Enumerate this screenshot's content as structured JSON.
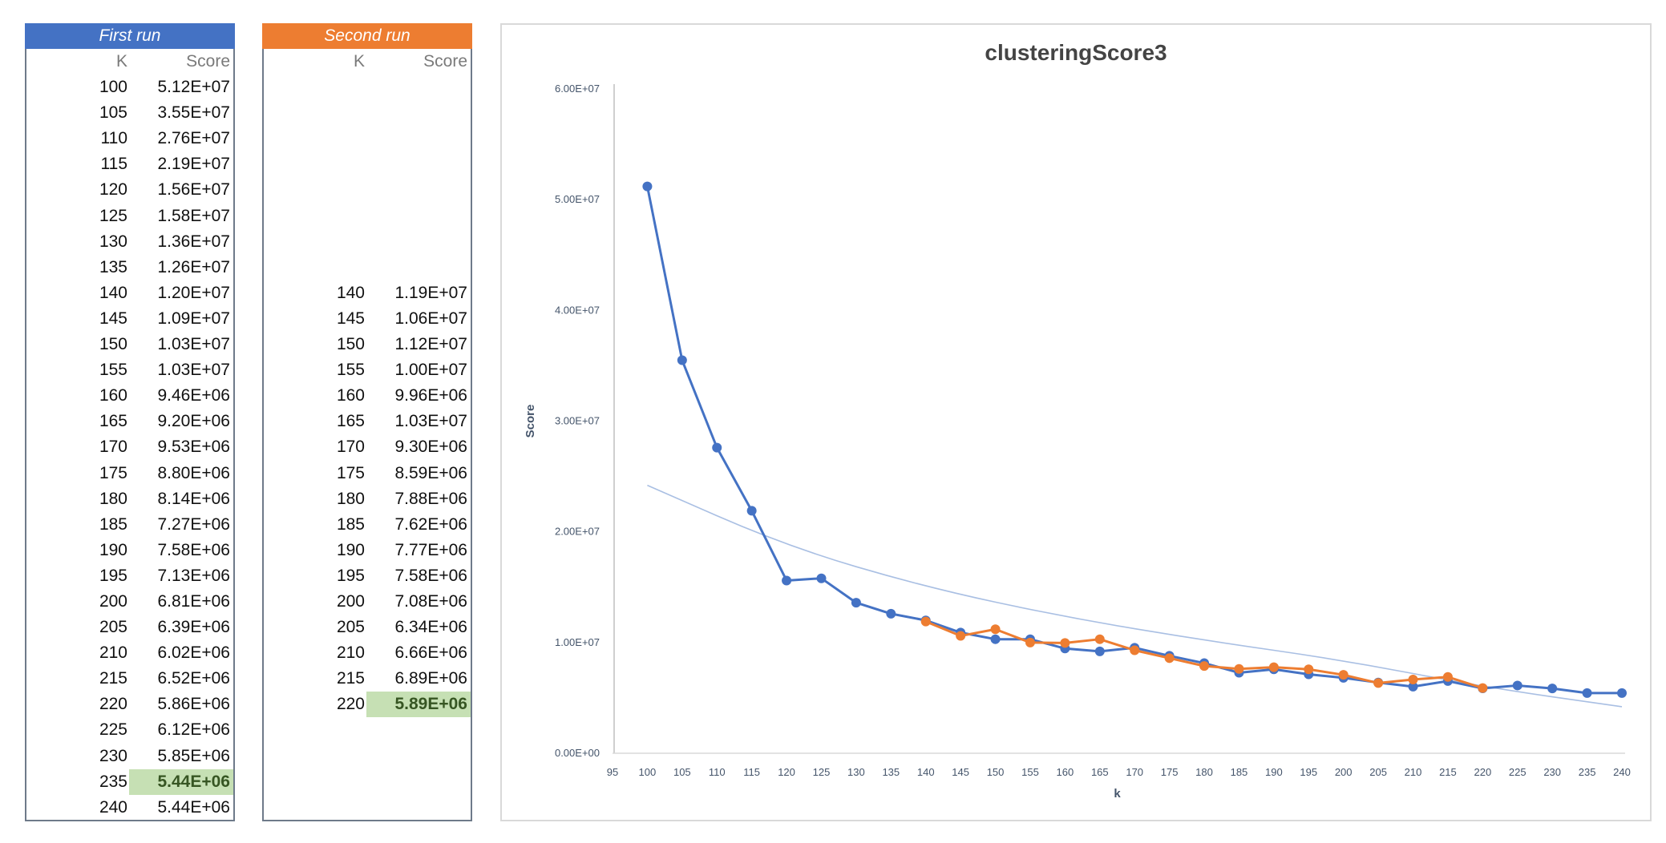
{
  "tables": {
    "first": {
      "title": "First run",
      "col_k": "K",
      "col_score": "Score",
      "rows": [
        {
          "k": "100",
          "score": "5.12E+07"
        },
        {
          "k": "105",
          "score": "3.55E+07"
        },
        {
          "k": "110",
          "score": "2.76E+07"
        },
        {
          "k": "115",
          "score": "2.19E+07"
        },
        {
          "k": "120",
          "score": "1.56E+07"
        },
        {
          "k": "125",
          "score": "1.58E+07"
        },
        {
          "k": "130",
          "score": "1.36E+07"
        },
        {
          "k": "135",
          "score": "1.26E+07"
        },
        {
          "k": "140",
          "score": "1.20E+07"
        },
        {
          "k": "145",
          "score": "1.09E+07"
        },
        {
          "k": "150",
          "score": "1.03E+07"
        },
        {
          "k": "155",
          "score": "1.03E+07"
        },
        {
          "k": "160",
          "score": "9.46E+06"
        },
        {
          "k": "165",
          "score": "9.20E+06"
        },
        {
          "k": "170",
          "score": "9.53E+06"
        },
        {
          "k": "175",
          "score": "8.80E+06"
        },
        {
          "k": "180",
          "score": "8.14E+06"
        },
        {
          "k": "185",
          "score": "7.27E+06"
        },
        {
          "k": "190",
          "score": "7.58E+06"
        },
        {
          "k": "195",
          "score": "7.13E+06"
        },
        {
          "k": "200",
          "score": "6.81E+06"
        },
        {
          "k": "205",
          "score": "6.39E+06"
        },
        {
          "k": "210",
          "score": "6.02E+06"
        },
        {
          "k": "215",
          "score": "6.52E+06"
        },
        {
          "k": "220",
          "score": "5.86E+06"
        },
        {
          "k": "225",
          "score": "6.12E+06"
        },
        {
          "k": "230",
          "score": "5.85E+06"
        },
        {
          "k": "235",
          "score": "5.44E+06",
          "highlight": true
        },
        {
          "k": "240",
          "score": "5.44E+06"
        }
      ]
    },
    "second": {
      "title": "Second run",
      "col_k": "K",
      "col_score": "Score",
      "rows": [
        {
          "k": "",
          "score": ""
        },
        {
          "k": "",
          "score": ""
        },
        {
          "k": "",
          "score": ""
        },
        {
          "k": "",
          "score": ""
        },
        {
          "k": "",
          "score": ""
        },
        {
          "k": "",
          "score": ""
        },
        {
          "k": "",
          "score": ""
        },
        {
          "k": "",
          "score": ""
        },
        {
          "k": "140",
          "score": "1.19E+07"
        },
        {
          "k": "145",
          "score": "1.06E+07"
        },
        {
          "k": "150",
          "score": "1.12E+07"
        },
        {
          "k": "155",
          "score": "1.00E+07"
        },
        {
          "k": "160",
          "score": "9.96E+06"
        },
        {
          "k": "165",
          "score": "1.03E+07"
        },
        {
          "k": "170",
          "score": "9.30E+06"
        },
        {
          "k": "175",
          "score": "8.59E+06"
        },
        {
          "k": "180",
          "score": "7.88E+06"
        },
        {
          "k": "185",
          "score": "7.62E+06"
        },
        {
          "k": "190",
          "score": "7.77E+06"
        },
        {
          "k": "195",
          "score": "7.58E+06"
        },
        {
          "k": "200",
          "score": "7.08E+06"
        },
        {
          "k": "205",
          "score": "6.34E+06"
        },
        {
          "k": "210",
          "score": "6.66E+06"
        },
        {
          "k": "215",
          "score": "6.89E+06"
        },
        {
          "k": "220",
          "score": "5.89E+06",
          "highlight": true
        },
        {
          "k": "",
          "score": ""
        },
        {
          "k": "",
          "score": ""
        },
        {
          "k": "",
          "score": ""
        },
        {
          "k": "",
          "score": ""
        }
      ]
    }
  },
  "chart_data": {
    "type": "line",
    "title": "clusteringScore3",
    "xlabel": "k",
    "ylabel": "Score",
    "x_ticks": [
      "95",
      "100",
      "105",
      "110",
      "115",
      "120",
      "125",
      "130",
      "135",
      "140",
      "145",
      "150",
      "155",
      "160",
      "165",
      "170",
      "175",
      "180",
      "185",
      "190",
      "195",
      "200",
      "205",
      "210",
      "215",
      "220",
      "225",
      "230",
      "235",
      "240"
    ],
    "y_ticks": [
      "0.00E+00",
      "1.00E+07",
      "2.00E+07",
      "3.00E+07",
      "4.00E+07",
      "5.00E+07",
      "6.00E+07"
    ],
    "xlim": [
      95,
      240
    ],
    "ylim": [
      0,
      60000000
    ],
    "grid": false,
    "series": [
      {
        "color": "#4472c4",
        "x": [
          100,
          105,
          110,
          115,
          120,
          125,
          130,
          135,
          140,
          145,
          150,
          155,
          160,
          165,
          170,
          175,
          180,
          185,
          190,
          195,
          200,
          205,
          210,
          215,
          220,
          225,
          230,
          235,
          240
        ],
        "y": [
          51200000,
          35500000,
          27600000,
          21900000,
          15600000,
          15800000,
          13600000,
          12600000,
          12000000,
          10900000,
          10300000,
          10300000,
          9460000,
          9200000,
          9530000,
          8800000,
          8140000,
          7270000,
          7580000,
          7130000,
          6810000,
          6390000,
          6020000,
          6520000,
          5860000,
          6120000,
          5850000,
          5440000,
          5440000
        ]
      },
      {
        "color": "#ed7d31",
        "x": [
          140,
          145,
          150,
          155,
          160,
          165,
          170,
          175,
          180,
          185,
          190,
          195,
          200,
          205,
          210,
          215,
          220
        ],
        "y": [
          11900000,
          10600000,
          11200000,
          10000000,
          9960000,
          10300000,
          9300000,
          8590000,
          7880000,
          7620000,
          7770000,
          7580000,
          7080000,
          6340000,
          6660000,
          6890000,
          5890000
        ]
      }
    ],
    "trendline": {
      "type": "power",
      "color": "#a9bfe3",
      "x": [
        100,
        120,
        140,
        160,
        180,
        200,
        220,
        240
      ],
      "y": [
        24200000,
        18700000,
        15000000,
        12300000,
        10200000,
        8400000,
        6000000,
        4200000
      ]
    }
  }
}
